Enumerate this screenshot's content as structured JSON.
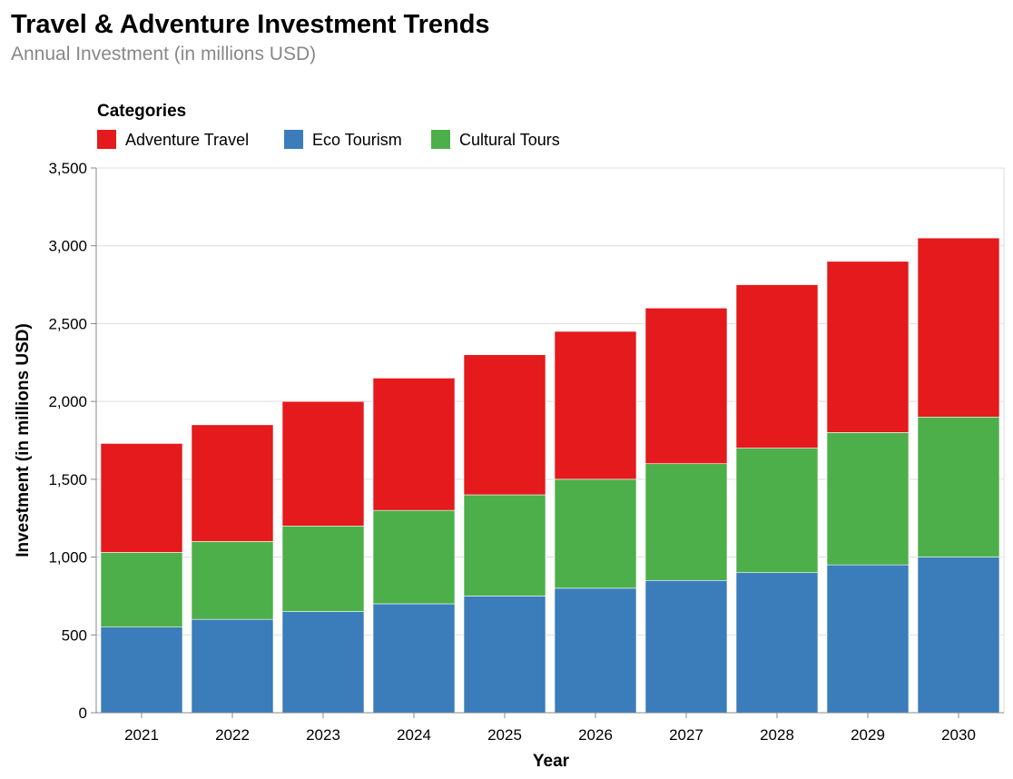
{
  "chart_data": {
    "type": "bar",
    "stacked": true,
    "title": "Travel & Adventure Investment Trends",
    "subtitle": "Annual Investment (in millions USD)",
    "xlabel": "Year",
    "ylabel": "Investment (in millions USD)",
    "ylim": [
      0,
      3500
    ],
    "yticks": [
      0,
      500,
      1000,
      1500,
      2000,
      2500,
      3000,
      3500
    ],
    "ytick_labels": [
      "0",
      "500",
      "1,000",
      "1,500",
      "2,000",
      "2,500",
      "3,000",
      "3,500"
    ],
    "grid": true,
    "legend_title": "Categories",
    "legend_position": "top-left",
    "categories": [
      "2021",
      "2022",
      "2023",
      "2024",
      "2025",
      "2026",
      "2027",
      "2028",
      "2029",
      "2030"
    ],
    "series": [
      {
        "name": "Eco Tourism",
        "color": "#3a7dba",
        "values": [
          550,
          600,
          650,
          700,
          750,
          800,
          850,
          900,
          950,
          1000
        ]
      },
      {
        "name": "Cultural Tours",
        "color": "#4daf4a",
        "values": [
          480,
          500,
          550,
          600,
          650,
          700,
          750,
          800,
          850,
          900
        ]
      },
      {
        "name": "Adventure Travel",
        "color": "#e41a1c",
        "values": [
          700,
          750,
          800,
          850,
          900,
          950,
          1000,
          1050,
          1100,
          1150
        ]
      }
    ],
    "legend_order": [
      "Adventure Travel",
      "Eco Tourism",
      "Cultural Tours"
    ]
  }
}
